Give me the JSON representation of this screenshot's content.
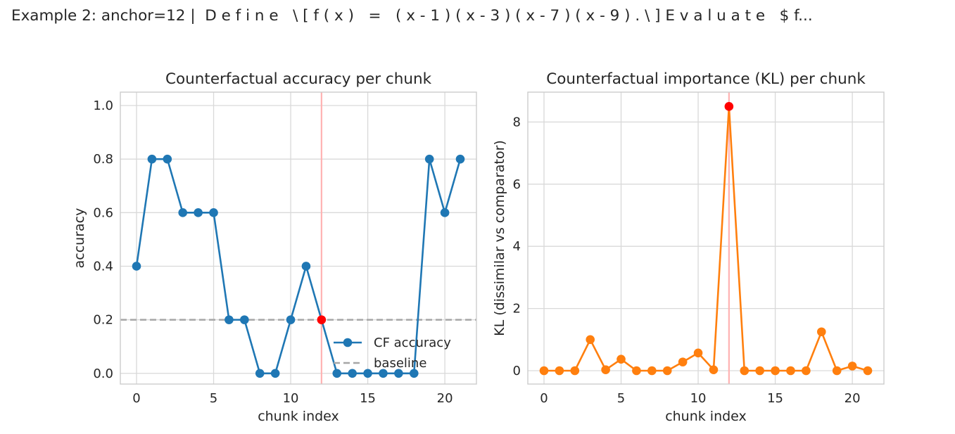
{
  "figure": {
    "suptitle": "Example 2: anchor=12 |  D e f i n e   \\ [ f ( x )   =   ( x - 1 ) ( x - 3 ) ( x - 7 ) ( x - 9 ) . \\ ] E v a l u a t e   $ f..."
  },
  "chart_data": [
    {
      "type": "line",
      "title": "Counterfactual accuracy per chunk",
      "xlabel": "chunk index",
      "ylabel": "accuracy",
      "xlim": [
        -1.05,
        22.05
      ],
      "ylim": [
        -0.04,
        1.05
      ],
      "xticks": [
        "0",
        "5",
        "10",
        "15",
        "20"
      ],
      "yticks": [
        "0.0",
        "0.2",
        "0.4",
        "0.6",
        "0.8",
        "1.0"
      ],
      "grid": true,
      "legend_placement": "lower-right",
      "anchor_index": 12,
      "anchor_color": "#ff0000",
      "anchor_line_color": "#ffb3b3",
      "series": [
        {
          "name": "CF accuracy",
          "color": "#1f77b4",
          "x": [
            0,
            1,
            2,
            3,
            4,
            5,
            6,
            7,
            8,
            9,
            10,
            11,
            12,
            13,
            14,
            15,
            16,
            17,
            18,
            19,
            20,
            21
          ],
          "y": [
            0.4,
            0.8,
            0.8,
            0.6,
            0.6,
            0.6,
            0.2,
            0.2,
            0.0,
            0.0,
            0.2,
            0.4,
            0.2,
            0.0,
            0.0,
            0.0,
            0.0,
            0.0,
            0.0,
            0.8,
            0.6,
            0.8
          ]
        }
      ],
      "baseline": {
        "name": "baseline",
        "value": 0.2,
        "color": "#a6a6a6"
      }
    },
    {
      "type": "line",
      "title": "Counterfactual importance (KL) per chunk",
      "xlabel": "chunk index",
      "ylabel": "KL (dissimilar vs comparator)",
      "xlim": [
        -1.05,
        22.05
      ],
      "ylim": [
        -0.43,
        8.96
      ],
      "xticks": [
        "0",
        "5",
        "10",
        "15",
        "20"
      ],
      "yticks": [
        "0",
        "2",
        "4",
        "6",
        "8"
      ],
      "grid": true,
      "anchor_index": 12,
      "anchor_color": "#ff0000",
      "anchor_line_color": "#ffb3b3",
      "series": [
        {
          "color": "#ff7f0e",
          "x": [
            0,
            1,
            2,
            3,
            4,
            5,
            6,
            7,
            8,
            9,
            10,
            11,
            12,
            13,
            14,
            15,
            16,
            17,
            18,
            19,
            20,
            21
          ],
          "y": [
            0.0,
            0.0,
            0.0,
            1.0,
            0.03,
            0.37,
            0.0,
            0.0,
            0.0,
            0.28,
            0.57,
            0.03,
            8.5,
            0.0,
            0.0,
            0.0,
            0.0,
            0.0,
            1.25,
            0.0,
            0.15,
            0.0
          ]
        }
      ]
    }
  ]
}
